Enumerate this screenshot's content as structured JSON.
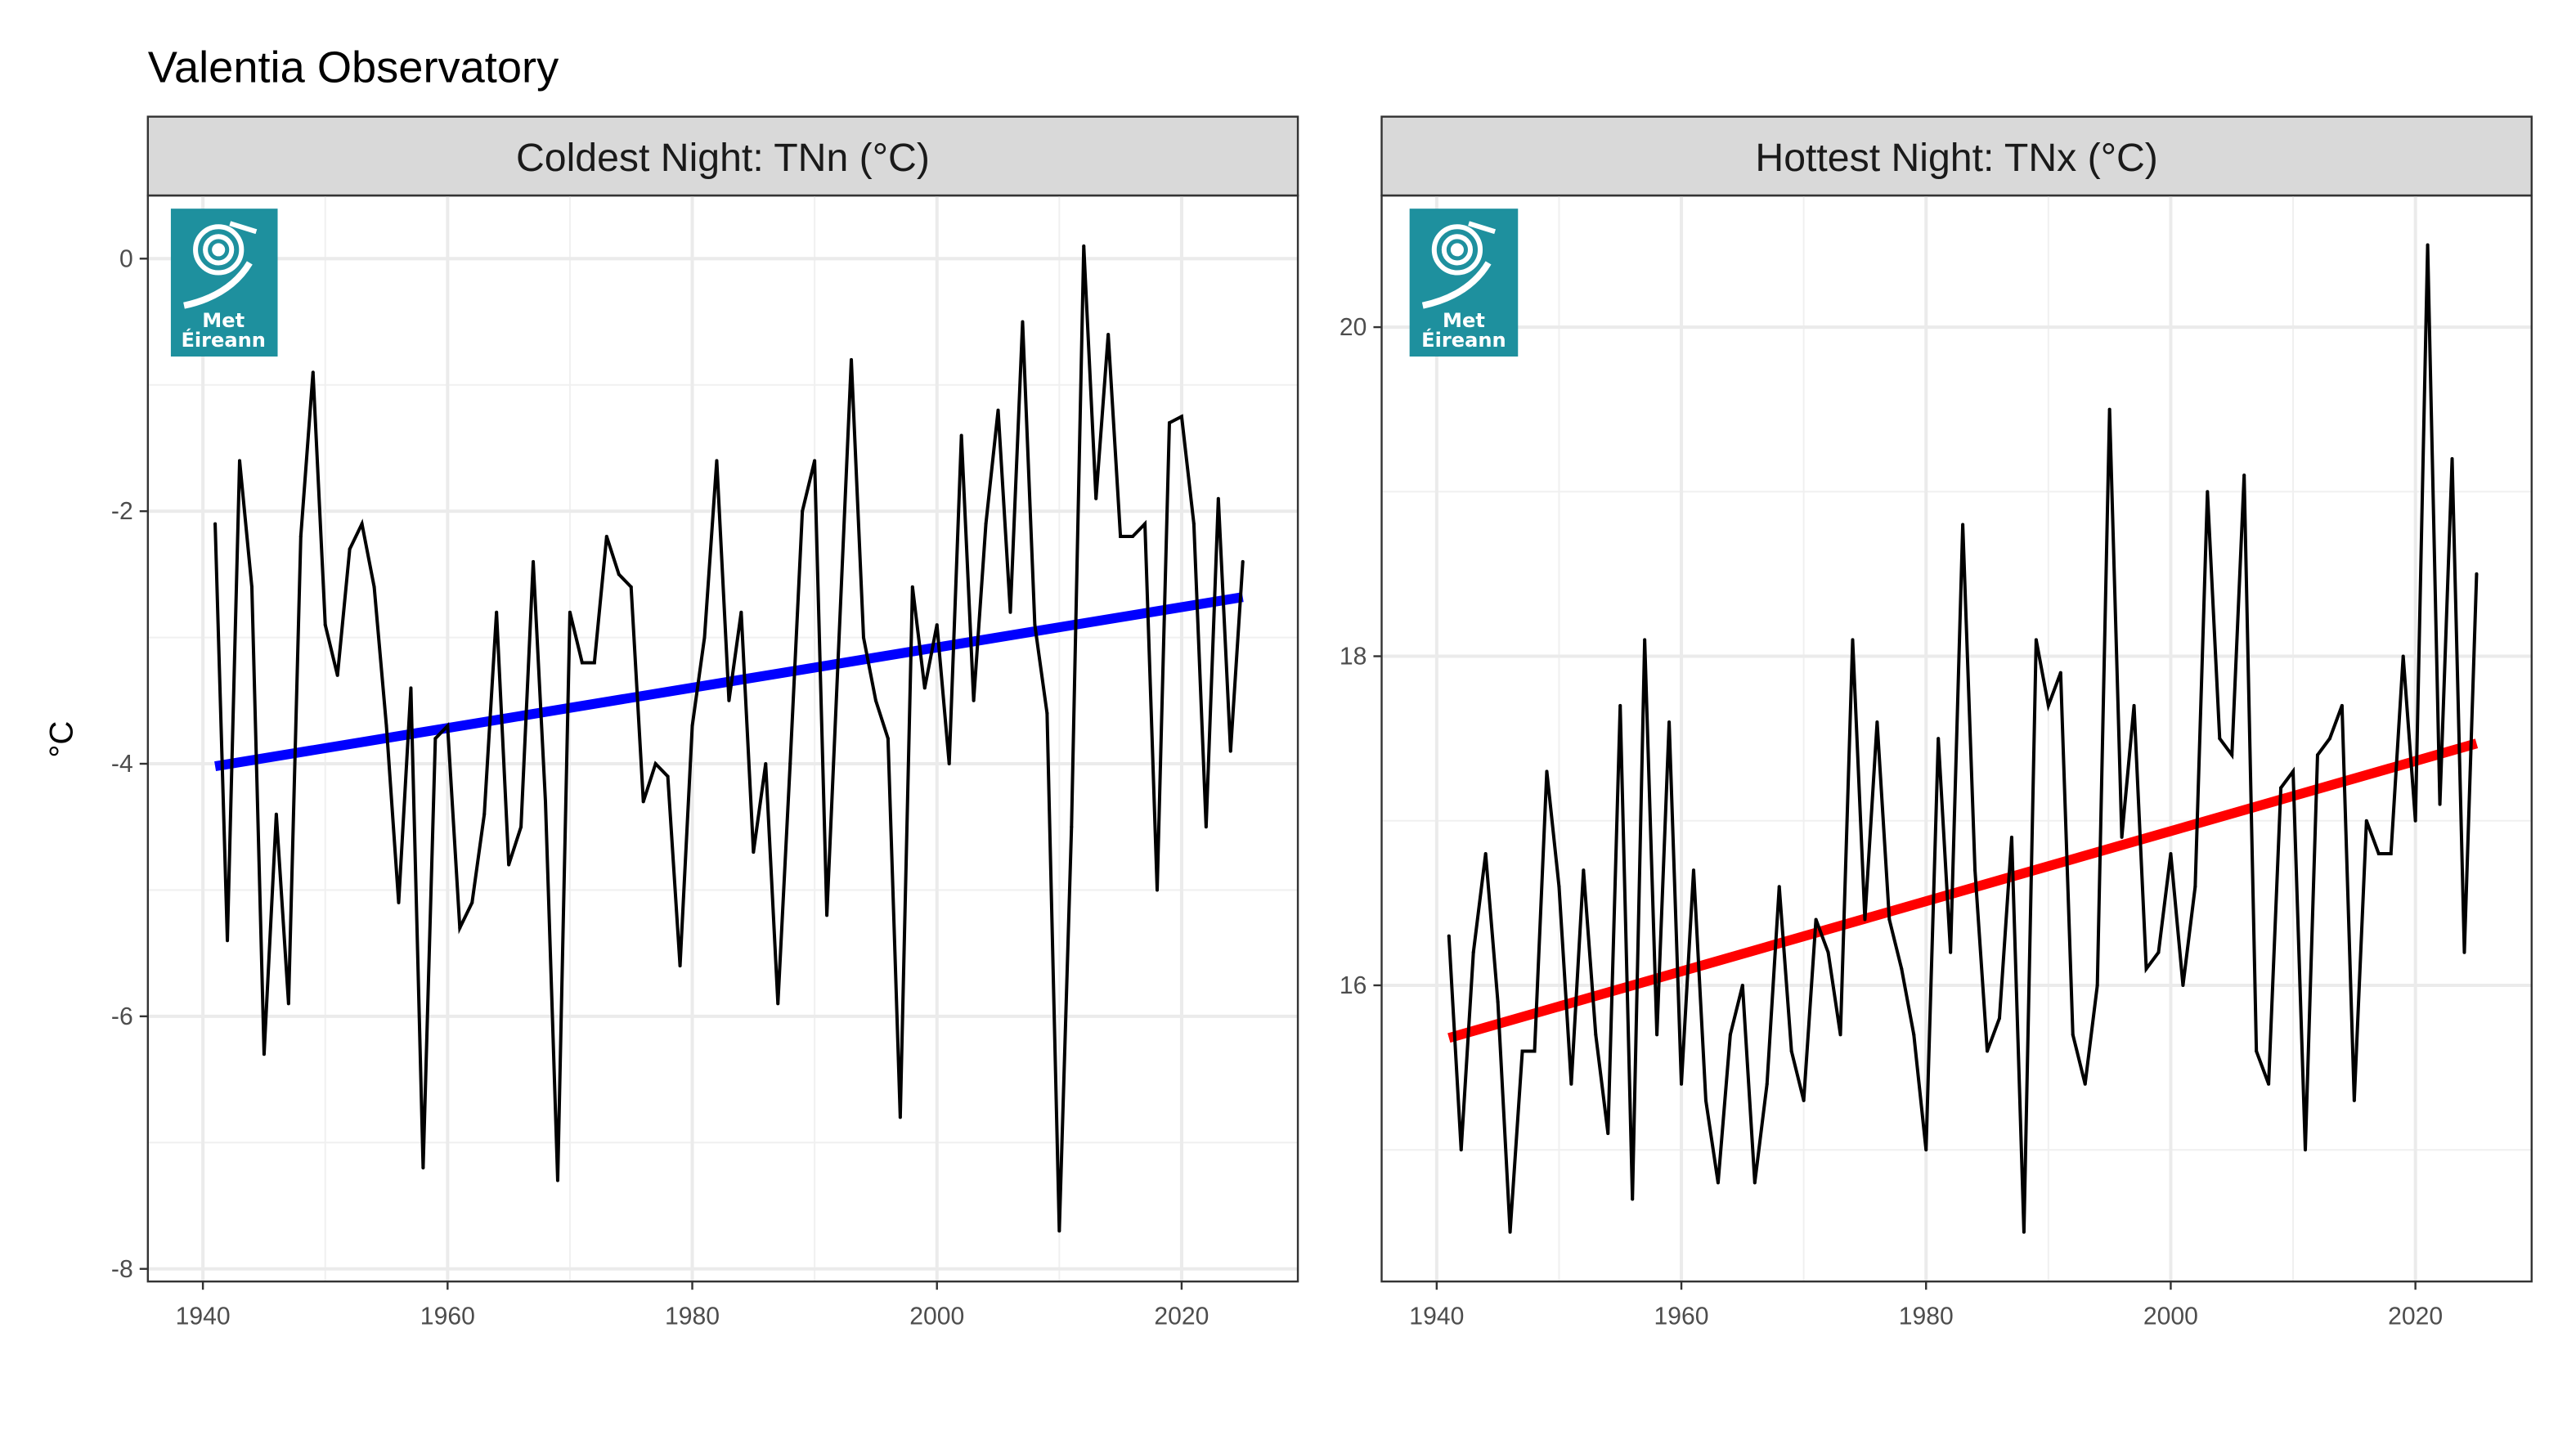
{
  "title": "Valentia Observatory",
  "logo": {
    "line1": "Met",
    "line2": "Éireann",
    "color": "#1e909e",
    "icon": "met-eireann-swirl-icon"
  },
  "chart_data": [
    {
      "type": "line",
      "title": "Coldest Night: TNn (°C)",
      "xlabel": "",
      "ylabel": "°C",
      "xlim": [
        1935.5,
        2029.5
      ],
      "ylim": [
        -8.1,
        0.5
      ],
      "x_ticks": [
        1940,
        1960,
        1980,
        2000,
        2020
      ],
      "x_tick_labels": [
        "1940",
        "1960",
        "1980",
        "2000",
        "2020"
      ],
      "y_ticks": [
        0,
        -2,
        -4,
        -6,
        -8
      ],
      "y_tick_labels": [
        "0",
        "-2",
        "-4",
        "-6",
        "-8"
      ],
      "grid": true,
      "series_color": "#000000",
      "trend_color": "#0000ff",
      "x": [
        1941,
        1942,
        1943,
        1944,
        1945,
        1946,
        1947,
        1948,
        1949,
        1950,
        1951,
        1952,
        1953,
        1954,
        1955,
        1956,
        1957,
        1958,
        1959,
        1960,
        1961,
        1962,
        1963,
        1964,
        1965,
        1966,
        1967,
        1968,
        1969,
        1970,
        1971,
        1972,
        1973,
        1974,
        1975,
        1976,
        1977,
        1978,
        1979,
        1980,
        1981,
        1982,
        1983,
        1984,
        1985,
        1986,
        1987,
        1988,
        1989,
        1990,
        1991,
        1992,
        1993,
        1994,
        1995,
        1996,
        1997,
        1998,
        1999,
        2000,
        2001,
        2002,
        2003,
        2004,
        2005,
        2006,
        2007,
        2008,
        2009,
        2010,
        2011,
        2012,
        2013,
        2014,
        2015,
        2016,
        2017,
        2018,
        2019,
        2020,
        2021,
        2022,
        2023,
        2024,
        2025
      ],
      "values": [
        -2.1,
        -5.4,
        -1.6,
        -2.6,
        -6.3,
        -4.4,
        -5.9,
        -2.2,
        -0.9,
        -2.9,
        -3.3,
        -2.3,
        -2.1,
        -2.6,
        -3.7,
        -5.1,
        -3.4,
        -7.2,
        -3.8,
        -3.7,
        -5.3,
        -5.1,
        -4.4,
        -2.8,
        -4.8,
        -4.5,
        -2.4,
        -4.3,
        -7.3,
        -2.8,
        -3.2,
        -3.2,
        -2.2,
        -2.5,
        -2.6,
        -4.3,
        -4.0,
        -4.1,
        -5.6,
        -3.7,
        -3.0,
        -1.6,
        -3.5,
        -2.8,
        -4.7,
        -4.0,
        -5.9,
        -4.0,
        -2.0,
        -1.6,
        -5.2,
        -3.0,
        -0.8,
        -3.0,
        -3.5,
        -3.8,
        -6.8,
        -2.6,
        -3.4,
        -2.9,
        -4.0,
        -1.4,
        -3.5,
        -2.1,
        -1.2,
        -2.8,
        -0.5,
        -2.9,
        -3.6,
        -7.7,
        -4.5,
        0.1,
        -1.9,
        -0.6,
        -2.2,
        -2.2,
        -2.1,
        -5.0,
        -1.3,
        -1.25,
        -2.1,
        -4.5,
        -1.9,
        -3.9,
        -2.4
      ],
      "trend": {
        "x": [
          1941,
          2025
        ],
        "y": [
          -4.02,
          -2.68
        ]
      }
    },
    {
      "type": "line",
      "title": "Hottest Night: TNx (°C)",
      "xlabel": "",
      "ylabel": "",
      "xlim": [
        1935.5,
        2029.5
      ],
      "ylim": [
        14.2,
        20.8
      ],
      "x_ticks": [
        1940,
        1960,
        1980,
        2000,
        2020
      ],
      "x_tick_labels": [
        "1940",
        "1960",
        "1980",
        "2000",
        "2020"
      ],
      "y_ticks": [
        16,
        18,
        20
      ],
      "y_tick_labels": [
        "16",
        "18",
        "20"
      ],
      "grid": true,
      "series_color": "#000000",
      "trend_color": "#ff0000",
      "x": [
        1941,
        1942,
        1943,
        1944,
        1945,
        1946,
        1947,
        1948,
        1949,
        1950,
        1951,
        1952,
        1953,
        1954,
        1955,
        1956,
        1957,
        1958,
        1959,
        1960,
        1961,
        1962,
        1963,
        1964,
        1965,
        1966,
        1967,
        1968,
        1969,
        1970,
        1971,
        1972,
        1973,
        1974,
        1975,
        1976,
        1977,
        1978,
        1979,
        1980,
        1981,
        1982,
        1983,
        1984,
        1985,
        1986,
        1987,
        1988,
        1989,
        1990,
        1991,
        1992,
        1993,
        1994,
        1995,
        1996,
        1997,
        1998,
        1999,
        2000,
        2001,
        2002,
        2003,
        2004,
        2005,
        2006,
        2007,
        2008,
        2009,
        2010,
        2011,
        2012,
        2013,
        2014,
        2015,
        2016,
        2017,
        2018,
        2019,
        2020,
        2021,
        2022,
        2023,
        2024,
        2025
      ],
      "values": [
        16.3,
        15.0,
        16.2,
        16.8,
        15.9,
        14.5,
        15.6,
        15.6,
        17.3,
        16.6,
        15.4,
        16.7,
        15.7,
        15.1,
        17.7,
        14.7,
        18.1,
        15.7,
        17.6,
        15.4,
        16.7,
        15.3,
        14.8,
        15.7,
        16.0,
        14.8,
        15.4,
        16.6,
        15.6,
        15.3,
        16.4,
        16.2,
        15.7,
        18.1,
        16.4,
        17.6,
        16.4,
        16.1,
        15.7,
        15.0,
        17.5,
        16.2,
        18.8,
        16.7,
        15.6,
        15.8,
        16.9,
        14.5,
        18.1,
        17.7,
        17.9,
        15.7,
        15.4,
        16.0,
        19.5,
        16.9,
        17.7,
        16.1,
        16.2,
        16.8,
        16.0,
        16.6,
        19.0,
        17.5,
        17.4,
        19.1,
        15.6,
        15.4,
        17.2,
        17.3,
        15.0,
        17.4,
        17.5,
        17.7,
        15.3,
        17.0,
        16.8,
        16.8,
        18.0,
        17.0,
        20.5,
        17.1,
        19.2,
        16.2,
        18.5
      ],
      "trend": {
        "x": [
          1941,
          2025
        ],
        "y": [
          15.68,
          17.47
        ]
      }
    }
  ]
}
